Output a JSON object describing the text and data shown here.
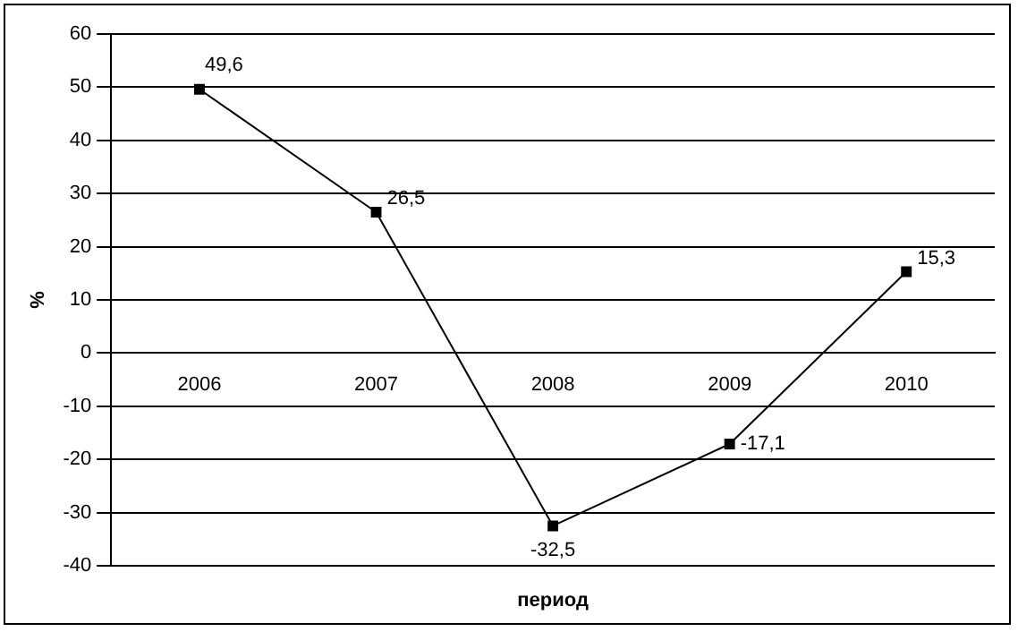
{
  "chart_data": {
    "type": "line",
    "xlabel": "период",
    "ylabel": "%",
    "categories": [
      "2006",
      "2007",
      "2008",
      "2009",
      "2010"
    ],
    "series": [
      {
        "color": "#000000",
        "values": [
          49.6,
          26.5,
          -32.5,
          -17.1,
          15.3
        ],
        "value_labels": [
          "49,6",
          "26,5",
          "-32,5",
          "-17,1",
          "15,3"
        ]
      }
    ],
    "ylim": [
      -40,
      60
    ],
    "yticks": [
      -40,
      -30,
      -20,
      -10,
      0,
      10,
      20,
      30,
      40,
      50,
      60
    ],
    "grid": "y",
    "legend": false,
    "marker": "square",
    "line_style": "solid"
  }
}
